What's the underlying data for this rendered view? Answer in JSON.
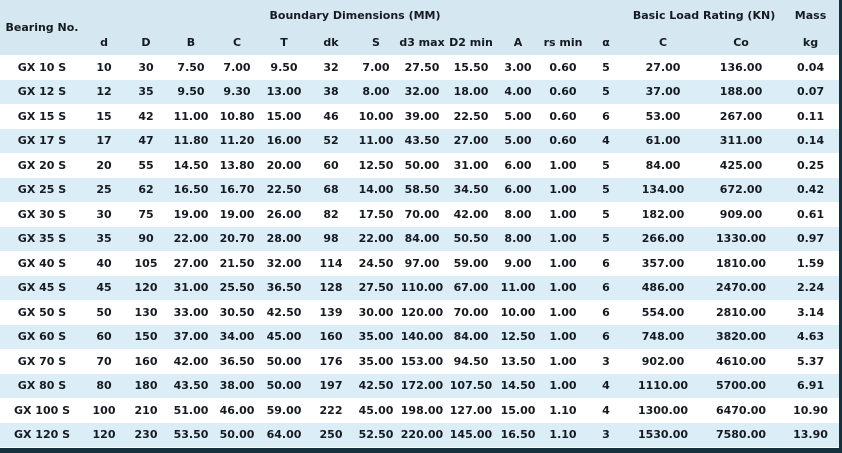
{
  "colors": {
    "header_bg": "#d5e8f2",
    "stripe_bg": "#dbedf6",
    "border_dark": "#16303e",
    "text": "#161a21"
  },
  "chart_data": {
    "type": "table",
    "header_groups": [
      {
        "label": "Bearing No."
      },
      {
        "label": "Boundary Dimensions (MM)"
      },
      {
        "label": "Basic Load Rating (KN)"
      },
      {
        "label": "Mass"
      }
    ],
    "columns": [
      "d",
      "D",
      "B",
      "C",
      "T",
      "dk",
      "S",
      "d3 max",
      "D2 min",
      "A",
      "rs min",
      "α",
      "C",
      "Co",
      "kg"
    ],
    "rows": [
      [
        "GX 10 S",
        "10",
        "30",
        "7.50",
        "7.00",
        "9.50",
        "32",
        "7.00",
        "27.50",
        "15.50",
        "3.00",
        "0.60",
        "5",
        "27.00",
        "136.00",
        "0.04"
      ],
      [
        "GX 12 S",
        "12",
        "35",
        "9.50",
        "9.30",
        "13.00",
        "38",
        "8.00",
        "32.00",
        "18.00",
        "4.00",
        "0.60",
        "5",
        "37.00",
        "188.00",
        "0.07"
      ],
      [
        "GX 15 S",
        "15",
        "42",
        "11.00",
        "10.80",
        "15.00",
        "46",
        "10.00",
        "39.00",
        "22.50",
        "5.00",
        "0.60",
        "6",
        "53.00",
        "267.00",
        "0.11"
      ],
      [
        "GX 17 S",
        "17",
        "47",
        "11.80",
        "11.20",
        "16.00",
        "52",
        "11.00",
        "43.50",
        "27.00",
        "5.00",
        "0.60",
        "4",
        "61.00",
        "311.00",
        "0.14"
      ],
      [
        "GX 20 S",
        "20",
        "55",
        "14.50",
        "13.80",
        "20.00",
        "60",
        "12.50",
        "50.00",
        "31.00",
        "6.00",
        "1.00",
        "5",
        "84.00",
        "425.00",
        "0.25"
      ],
      [
        "GX 25 S",
        "25",
        "62",
        "16.50",
        "16.70",
        "22.50",
        "68",
        "14.00",
        "58.50",
        "34.50",
        "6.00",
        "1.00",
        "5",
        "134.00",
        "672.00",
        "0.42"
      ],
      [
        "GX 30 S",
        "30",
        "75",
        "19.00",
        "19.00",
        "26.00",
        "82",
        "17.50",
        "70.00",
        "42.00",
        "8.00",
        "1.00",
        "5",
        "182.00",
        "909.00",
        "0.61"
      ],
      [
        "GX 35 S",
        "35",
        "90",
        "22.00",
        "20.70",
        "28.00",
        "98",
        "22.00",
        "84.00",
        "50.50",
        "8.00",
        "1.00",
        "5",
        "266.00",
        "1330.00",
        "0.97"
      ],
      [
        "GX 40 S",
        "40",
        "105",
        "27.00",
        "21.50",
        "32.00",
        "114",
        "24.50",
        "97.00",
        "59.00",
        "9.00",
        "1.00",
        "6",
        "357.00",
        "1810.00",
        "1.59"
      ],
      [
        "GX 45 S",
        "45",
        "120",
        "31.00",
        "25.50",
        "36.50",
        "128",
        "27.50",
        "110.00",
        "67.00",
        "11.00",
        "1.00",
        "6",
        "486.00",
        "2470.00",
        "2.24"
      ],
      [
        "GX 50 S",
        "50",
        "130",
        "33.00",
        "30.50",
        "42.50",
        "139",
        "30.00",
        "120.00",
        "70.00",
        "10.00",
        "1.00",
        "6",
        "554.00",
        "2810.00",
        "3.14"
      ],
      [
        "GX 60 S",
        "60",
        "150",
        "37.00",
        "34.00",
        "45.00",
        "160",
        "35.00",
        "140.00",
        "84.00",
        "12.50",
        "1.00",
        "6",
        "748.00",
        "3820.00",
        "4.63"
      ],
      [
        "GX 70 S",
        "70",
        "160",
        "42.00",
        "36.50",
        "50.00",
        "176",
        "35.00",
        "153.00",
        "94.50",
        "13.50",
        "1.00",
        "3",
        "902.00",
        "4610.00",
        "5.37"
      ],
      [
        "GX 80 S",
        "80",
        "180",
        "43.50",
        "38.00",
        "50.00",
        "197",
        "42.50",
        "172.00",
        "107.50",
        "14.50",
        "1.00",
        "4",
        "1110.00",
        "5700.00",
        "6.91"
      ],
      [
        "GX 100 S",
        "100",
        "210",
        "51.00",
        "46.00",
        "59.00",
        "222",
        "45.00",
        "198.00",
        "127.00",
        "15.00",
        "1.10",
        "4",
        "1300.00",
        "6470.00",
        "10.90"
      ],
      [
        "GX 120 S",
        "120",
        "230",
        "53.50",
        "50.00",
        "64.00",
        "250",
        "52.50",
        "220.00",
        "145.00",
        "16.50",
        "1.10",
        "3",
        "1530.00",
        "7580.00",
        "13.90"
      ]
    ]
  }
}
